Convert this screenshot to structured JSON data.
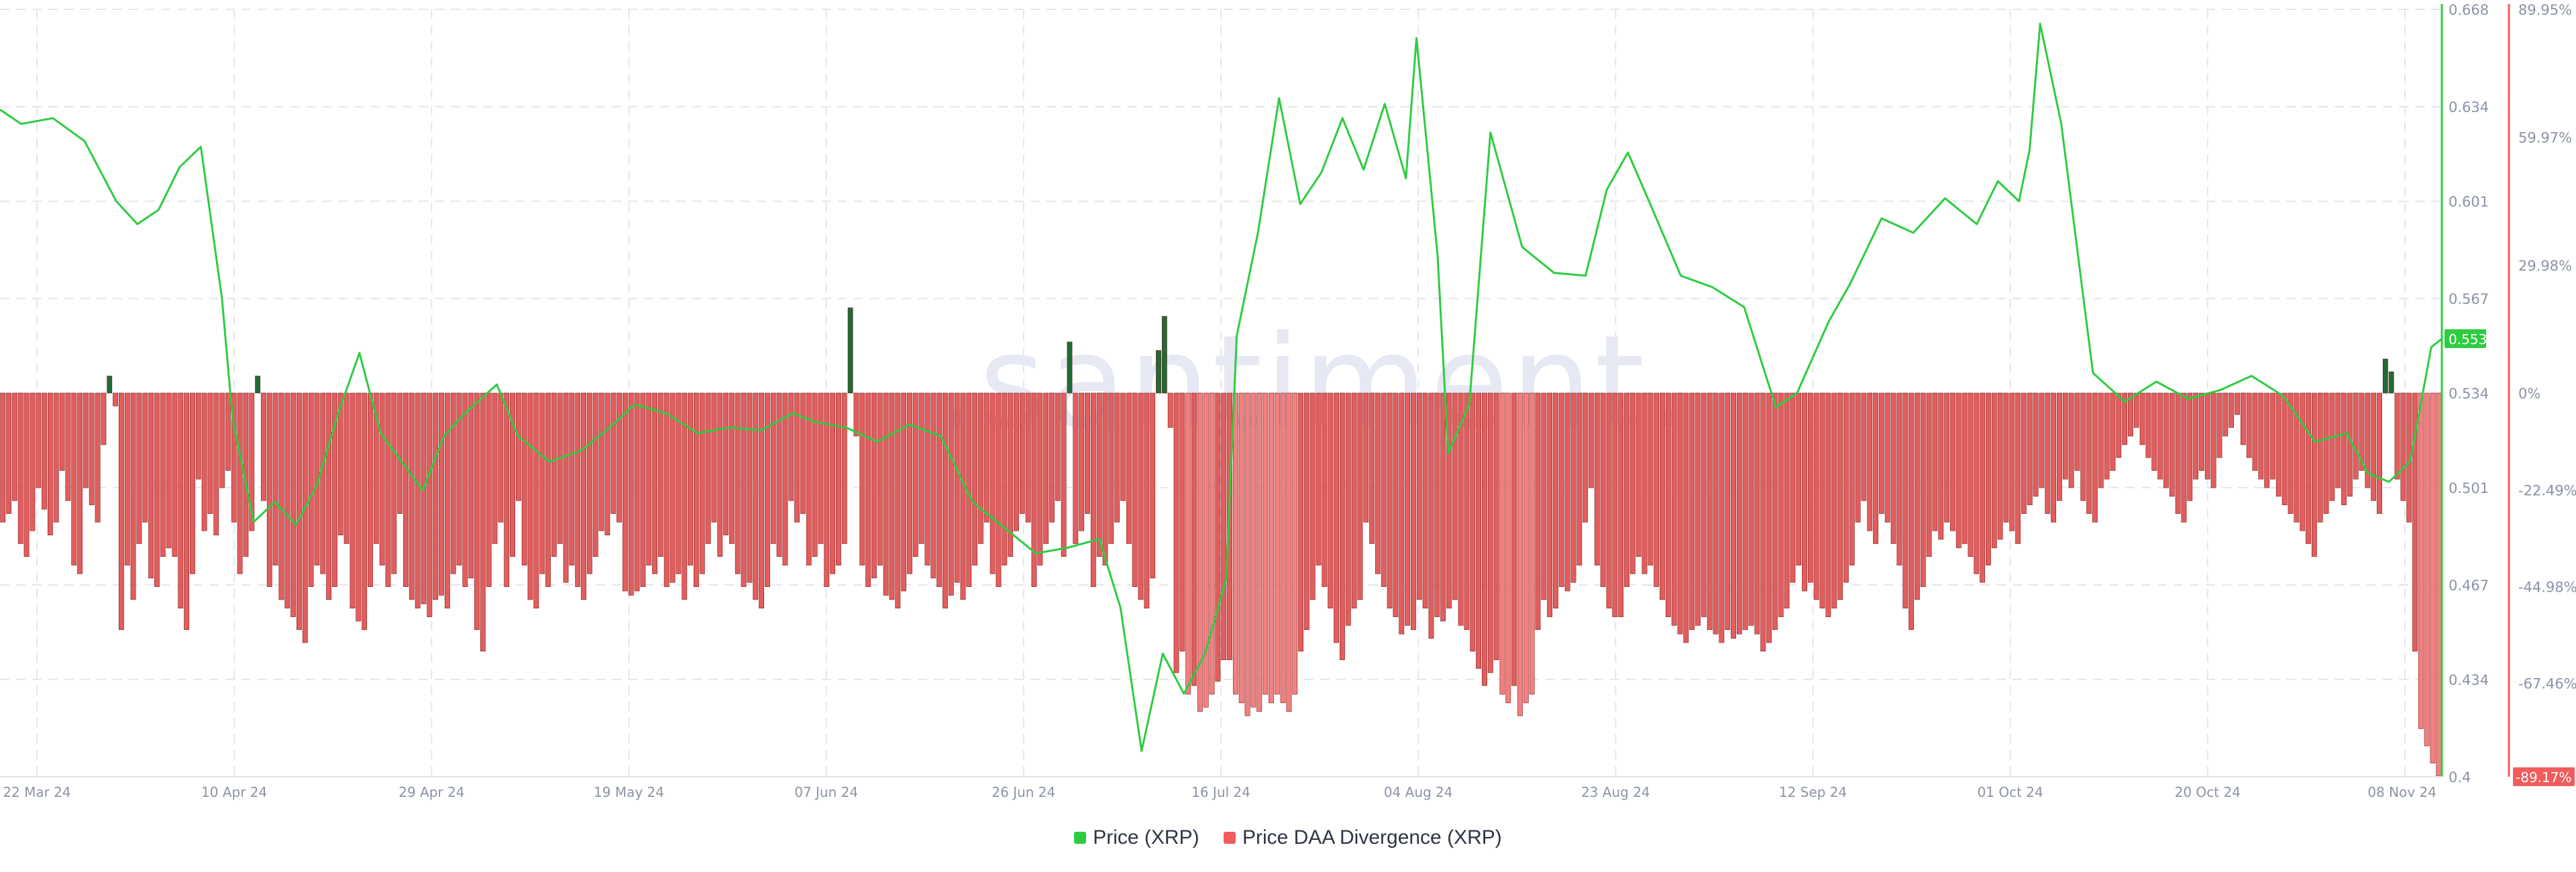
{
  "app": {
    "watermark": ".santiment."
  },
  "legend": [
    {
      "label": "Price (XRP)",
      "color": "#2ecc40"
    },
    {
      "label": "Price DAA Divergence (XRP)",
      "color": "#f25c5c"
    }
  ],
  "badges": {
    "price": "0.553",
    "divergence": "-89.17%"
  },
  "colors": {
    "price_line": "#2ecc40",
    "neg_bar": "#e35d5d",
    "neg_bar_light": "#f47f7f",
    "neg_bar_dark": "#7a1f1f",
    "pos_bar": "#1e6b35",
    "grid": "#e3e6ec",
    "axis_right": "#f25c5c",
    "axis_green": "#2ecc40"
  },
  "chart_data": {
    "type": "bar+line",
    "x_ticks": [
      "22 Mar 24",
      "10 Apr 24",
      "29 Apr 24",
      "19 May 24",
      "07 Jun 24",
      "26 Jun 24",
      "16 Jul 24",
      "04 Aug 24",
      "23 Aug 24",
      "12 Sep 24",
      "01 Oct 24",
      "20 Oct 24",
      "08 Nov 24"
    ],
    "y_left_ticks": [
      "0.668",
      "0.634",
      "0.601",
      "0.567",
      "0.534",
      "0.501",
      "0.467",
      "0.434",
      "0.4"
    ],
    "y_left_range": [
      0.4,
      0.668
    ],
    "y_right_ticks": [
      "89.95%",
      "59.97%",
      "29.98%",
      "0%",
      "-22.49%",
      "-44.98%",
      "-67.46%",
      "-89.17%"
    ],
    "y_right_range": [
      -89.17,
      89.95
    ],
    "date_range": [
      "2024-03-22",
      "2024-11-08"
    ],
    "series": [
      {
        "name": "Price (XRP)",
        "axis": "left",
        "x": [
          "2024-03-22",
          "2024-03-24",
          "2024-03-27",
          "2024-03-30",
          "2024-04-02",
          "2024-04-04",
          "2024-04-06",
          "2024-04-08",
          "2024-04-10",
          "2024-04-12",
          "2024-04-13",
          "2024-04-15",
          "2024-04-17",
          "2024-04-19",
          "2024-04-21",
          "2024-04-23",
          "2024-04-25",
          "2024-04-27",
          "2024-04-29",
          "2024-05-01",
          "2024-05-03",
          "2024-05-05",
          "2024-05-08",
          "2024-05-10",
          "2024-05-13",
          "2024-05-16",
          "2024-05-19",
          "2024-05-21",
          "2024-05-24",
          "2024-05-27",
          "2024-05-30",
          "2024-06-02",
          "2024-06-05",
          "2024-06-07",
          "2024-06-10",
          "2024-06-13",
          "2024-06-16",
          "2024-06-19",
          "2024-06-22",
          "2024-06-25",
          "2024-06-28",
          "2024-07-01",
          "2024-07-04",
          "2024-07-06",
          "2024-07-08",
          "2024-07-10",
          "2024-07-12",
          "2024-07-14",
          "2024-07-16",
          "2024-07-17",
          "2024-07-19",
          "2024-07-21",
          "2024-07-23",
          "2024-07-25",
          "2024-07-27",
          "2024-07-29",
          "2024-07-31",
          "2024-08-02",
          "2024-08-03",
          "2024-08-05",
          "2024-08-06",
          "2024-08-08",
          "2024-08-10",
          "2024-08-13",
          "2024-08-16",
          "2024-08-19",
          "2024-08-21",
          "2024-08-23",
          "2024-08-25",
          "2024-08-28",
          "2024-08-31",
          "2024-09-03",
          "2024-09-06",
          "2024-09-08",
          "2024-09-11",
          "2024-09-13",
          "2024-09-16",
          "2024-09-19",
          "2024-09-22",
          "2024-09-25",
          "2024-09-27",
          "2024-09-29",
          "2024-09-30",
          "2024-10-01",
          "2024-10-03",
          "2024-10-06",
          "2024-10-09",
          "2024-10-12",
          "2024-10-15",
          "2024-10-18",
          "2024-10-21",
          "2024-10-24",
          "2024-10-27",
          "2024-10-30",
          "2024-11-01",
          "2024-11-03",
          "2024-11-05",
          "2024-11-06",
          "2024-11-07",
          "2024-11-08"
        ],
        "values": [
          0.633,
          0.628,
          0.63,
          0.622,
          0.601,
          0.593,
          0.598,
          0.613,
          0.62,
          0.567,
          0.525,
          0.489,
          0.496,
          0.488,
          0.502,
          0.527,
          0.548,
          0.52,
          0.51,
          0.5,
          0.519,
          0.527,
          0.537,
          0.519,
          0.51,
          0.514,
          0.523,
          0.53,
          0.527,
          0.52,
          0.522,
          0.521,
          0.527,
          0.524,
          0.522,
          0.517,
          0.523,
          0.519,
          0.496,
          0.487,
          0.478,
          0.48,
          0.483,
          0.459,
          0.409,
          0.443,
          0.429,
          0.443,
          0.469,
          0.554,
          0.59,
          0.637,
          0.6,
          0.611,
          0.63,
          0.612,
          0.635,
          0.609,
          0.658,
          0.582,
          0.513,
          0.53,
          0.625,
          0.585,
          0.576,
          0.575,
          0.605,
          0.618,
          0.601,
          0.575,
          0.571,
          0.564,
          0.529,
          0.534,
          0.559,
          0.572,
          0.595,
          0.59,
          0.602,
          0.593,
          0.608,
          0.601,
          0.619,
          0.663,
          0.628,
          0.541,
          0.531,
          0.538,
          0.532,
          0.535,
          0.54,
          0.533,
          0.517,
          0.52,
          0.506,
          0.503,
          0.51,
          0.53,
          0.55,
          0.553
        ]
      },
      {
        "name": "Price DAA Divergence (XRP)",
        "axis": "right",
        "bars": [
          -30,
          -28,
          -25,
          -35,
          -38,
          -32,
          -22,
          -27,
          -33,
          -30,
          -18,
          -25,
          -40,
          -42,
          -22,
          -26,
          -30,
          -12,
          4,
          -3,
          -55,
          -40,
          -48,
          -35,
          -30,
          -43,
          -45,
          -38,
          -36,
          -38,
          -50,
          -55,
          -42,
          -20,
          -32,
          -28,
          -33,
          -22,
          -18,
          -30,
          -42,
          -38,
          -32,
          4,
          -25,
          -45,
          -40,
          -48,
          -50,
          -52,
          -55,
          -58,
          -45,
          -40,
          -42,
          -48,
          -45,
          -33,
          -35,
          -50,
          -53,
          -55,
          -45,
          -35,
          -40,
          -45,
          -42,
          -28,
          -45,
          -48,
          -50,
          -49,
          -52,
          -48,
          -47,
          -50,
          -42,
          -40,
          -45,
          -43,
          -55,
          -60,
          -45,
          -35,
          -30,
          -45,
          -38,
          -25,
          -40,
          -48,
          -50,
          -42,
          -45,
          -38,
          -35,
          -44,
          -40,
          -45,
          -48,
          -42,
          -38,
          -32,
          -33,
          -28,
          -30,
          -46,
          -47,
          -46,
          -45,
          -40,
          -42,
          -38,
          -45,
          -44,
          -42,
          -48,
          -40,
          -45,
          -42,
          -35,
          -30,
          -38,
          -33,
          -35,
          -42,
          -45,
          -44,
          -48,
          -50,
          -45,
          -35,
          -38,
          -40,
          -25,
          -30,
          -28,
          -40,
          -38,
          -35,
          -45,
          -42,
          -40,
          -35,
          20,
          -10,
          -40,
          -45,
          -43,
          -40,
          -47,
          -48,
          -50,
          -46,
          -42,
          -38,
          -35,
          -40,
          -43,
          -45,
          -50,
          -47,
          -44,
          -48,
          -45,
          -40,
          -35,
          -30,
          -42,
          -45,
          -40,
          -38,
          -32,
          -28,
          -30,
          -45,
          -40,
          -35,
          -30,
          -25,
          -38,
          12,
          -35,
          -32,
          -28,
          -45,
          -38,
          -40,
          -35,
          -30,
          -25,
          -35,
          -45,
          -48,
          -50,
          -43,
          10,
          18,
          -8,
          -65,
          -60,
          -70,
          -68,
          -74,
          -73,
          -70,
          -67,
          -62,
          -62,
          -70,
          -72,
          -75,
          -73,
          -74,
          -70,
          -72,
          -70,
          -72,
          -74,
          -70,
          -60,
          -55,
          -48,
          -40,
          -45,
          -50,
          -58,
          -62,
          -54,
          -50,
          -48,
          -30,
          -35,
          -42,
          -45,
          -50,
          -52,
          -56,
          -54,
          -55,
          -48,
          -50,
          -57,
          -52,
          -53,
          -50,
          -48,
          -54,
          -55,
          -60,
          -64,
          -68,
          -65,
          -62,
          -70,
          -72,
          -68,
          -75,
          -72,
          -70,
          -55,
          -48,
          -52,
          -50,
          -45,
          -46,
          -44,
          -40,
          -30,
          -22,
          -40,
          -45,
          -50,
          -52,
          -52,
          -45,
          -42,
          -38,
          -42,
          -40,
          -45,
          -48,
          -52,
          -54,
          -56,
          -58,
          -55,
          -54,
          -52,
          -55,
          -56,
          -58,
          -55,
          -57,
          -56,
          -55,
          -54,
          -56,
          -60,
          -58,
          -55,
          -52,
          -50,
          -44,
          -40,
          -46,
          -44,
          -48,
          -50,
          -52,
          -50,
          -48,
          -44,
          -40,
          -30,
          -25,
          -32,
          -35,
          -28,
          -30,
          -35,
          -40,
          -50,
          -55,
          -48,
          -45,
          -38,
          -32,
          -34,
          -30,
          -32,
          -36,
          -35,
          -38,
          -42,
          -44,
          -40,
          -36,
          -34,
          -30,
          -32,
          -35,
          -28,
          -26,
          -24,
          -22,
          -28,
          -30,
          -25,
          -20,
          -22,
          -18,
          -25,
          -28,
          -30,
          -22,
          -20,
          -18,
          -15,
          -12,
          -10,
          -8,
          -12,
          -15,
          -18,
          -20,
          -22,
          -24,
          -28,
          -30,
          -25,
          -20,
          -18,
          -20,
          -22,
          -15,
          -10,
          -8,
          -5,
          -12,
          -15,
          -18,
          -20,
          -22,
          -20,
          -24,
          -26,
          -28,
          -30,
          -32,
          -35,
          -38,
          -30,
          -28,
          -25,
          -22,
          -26,
          -24,
          -20,
          -18,
          -22,
          -25,
          -28,
          8,
          5,
          -20,
          -25,
          -30,
          -60,
          -78,
          -82,
          -86,
          -89
        ]
      }
    ],
    "last_price": 0.553,
    "last_divergence": -89.17
  }
}
